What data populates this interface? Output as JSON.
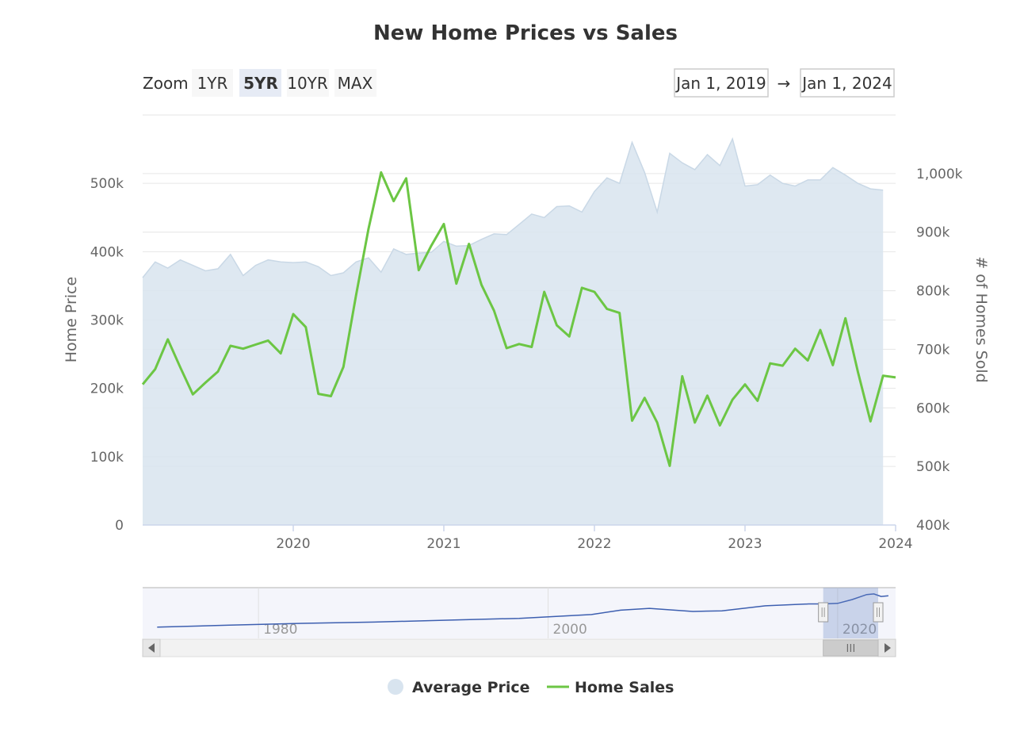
{
  "chart_data": {
    "type": "area+line",
    "title": "New Home Prices vs Sales",
    "zoom": {
      "label": "Zoom",
      "buttons": [
        "1YR",
        "5YR",
        "10YR",
        "MAX"
      ],
      "selected": "5YR"
    },
    "range": {
      "from": "Jan 1, 2019",
      "arrow": "→",
      "to": "Jan 1, 2024"
    },
    "x_axis": {
      "min": 2019,
      "max": 2024,
      "ticks": [
        "2020",
        "2021",
        "2022",
        "2023",
        "2024"
      ]
    },
    "y_left": {
      "label": "Home Price",
      "min": 0,
      "max": 600000,
      "ticks": [
        "0",
        "100k",
        "200k",
        "300k",
        "400k",
        "500k"
      ]
    },
    "y_right": {
      "label": "# of Homes Sold",
      "min": 400000,
      "max": 1100000,
      "ticks": [
        "400k",
        "500k",
        "600k",
        "700k",
        "800k",
        "900k",
        "1,000k"
      ]
    },
    "grid": true,
    "legend_position": "bottom-center",
    "series": [
      {
        "name": "Average Price",
        "type": "area",
        "axis": "left",
        "color": "#d8e4ef",
        "x_start": 2019.0,
        "x_step": 0.0833333,
        "values": [
          362000,
          385000,
          376000,
          388000,
          380000,
          372000,
          375000,
          396000,
          365000,
          380000,
          388000,
          385000,
          384000,
          385000,
          378000,
          365000,
          369000,
          385000,
          391000,
          370000,
          404000,
          396000,
          398000,
          399000,
          415000,
          408000,
          409000,
          418000,
          426000,
          425000,
          440000,
          455000,
          450000,
          466000,
          467000,
          458000,
          488000,
          508000,
          500000,
          560000,
          516000,
          458000,
          544000,
          530000,
          520000,
          542000,
          526000,
          565000,
          496000,
          498000,
          512000,
          500000,
          496000,
          505000,
          505000,
          523000,
          512000,
          500000,
          492000,
          490000
        ]
      },
      {
        "name": "Home Sales",
        "type": "line",
        "axis": "right",
        "color": "#6cc644",
        "x_start": 2019.0,
        "x_step": 0.0833333,
        "values": [
          640000,
          666000,
          717000,
          669000,
          623000,
          643000,
          662000,
          706000,
          701000,
          708000,
          715000,
          693000,
          760000,
          738000,
          624000,
          620000,
          670000,
          792000,
          906000,
          1002000,
          953000,
          992000,
          835000,
          877000,
          914000,
          812000,
          880000,
          810000,
          766000,
          702000,
          709000,
          704000,
          798000,
          741000,
          722000,
          805000,
          798000,
          769000,
          762000,
          578000,
          617000,
          575000,
          501000,
          654000,
          575000,
          621000,
          570000,
          614000,
          640000,
          612000,
          676000,
          672000,
          701000,
          681000,
          733000,
          673000,
          753000,
          661000,
          577000,
          655000,
          652000
        ]
      }
    ],
    "navigator": {
      "labels": [
        "1980",
        "2000",
        "2020"
      ],
      "x_min": 1972,
      "x_max": 2024,
      "selection": [
        2019,
        2024
      ],
      "trend_x": [
        1973,
        1978,
        1983,
        1988,
        1993,
        1998,
        2003,
        2005,
        2007,
        2010,
        2012,
        2015,
        2018,
        2019,
        2020,
        2021,
        2022,
        2022.5,
        2023,
        2023.5
      ],
      "trend_y": [
        40,
        55,
        70,
        80,
        95,
        110,
        140,
        175,
        190,
        165,
        170,
        210,
        225,
        225,
        230,
        260,
        300,
        305,
        285,
        290
      ]
    }
  }
}
